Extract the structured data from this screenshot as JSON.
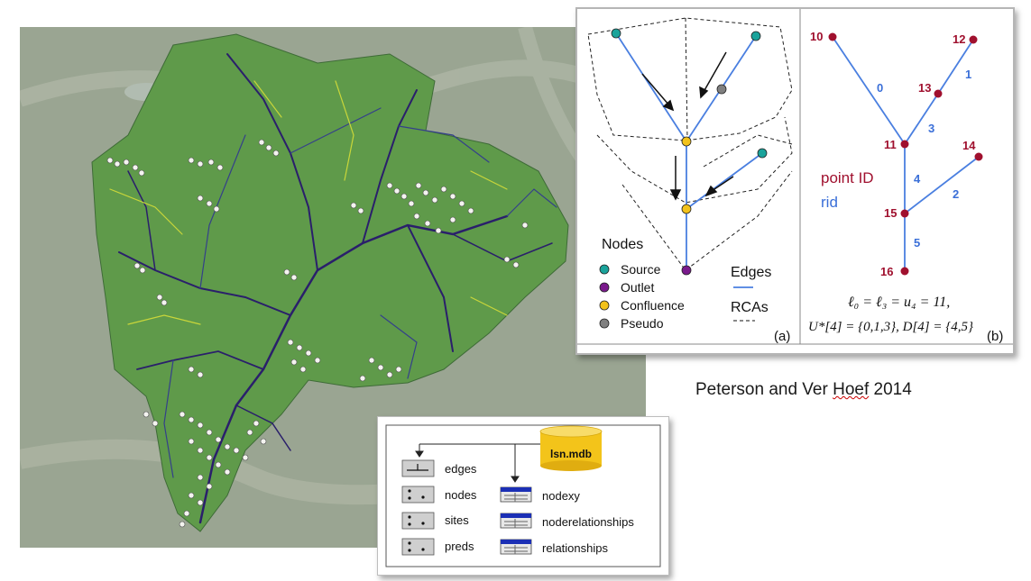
{
  "diagram_a": {
    "legend_nodes_title": "Nodes",
    "legend_nodes": [
      {
        "label": "Source",
        "color": "#1aa39b"
      },
      {
        "label": "Outlet",
        "color": "#7a1a8c"
      },
      {
        "label": "Confluence",
        "color": "#f2c21b"
      },
      {
        "label": "Pseudo",
        "color": "#808080"
      }
    ],
    "legend_edges_title": "Edges",
    "legend_rcas_title": "RCAs",
    "panel_label": "(a)"
  },
  "diagram_b": {
    "points": [
      {
        "id": "10"
      },
      {
        "id": "12"
      },
      {
        "id": "13"
      },
      {
        "id": "11"
      },
      {
        "id": "14"
      },
      {
        "id": "15"
      },
      {
        "id": "16"
      }
    ],
    "rids": [
      "0",
      "1",
      "3",
      "4",
      "2",
      "5"
    ],
    "legend_point_id": "point ID",
    "legend_rid": "rid",
    "formula_line1": "ℓ₀ = ℓ₃ = u₄ = 11,",
    "formula_line2": "U*[4] = {0,1,3},  D[4] = {4,5}",
    "panel_label": "(b)",
    "point_color": "#a0102e",
    "rid_color": "#3a6fd8"
  },
  "citation": {
    "authors": "Peterson and Ver",
    "flagged_word": "Hoef",
    "year": "2014"
  },
  "schema": {
    "database": "lsn.mdb",
    "feature_classes": [
      "edges",
      "nodes",
      "sites",
      "preds"
    ],
    "tables": [
      "nodexy",
      "noderelationships",
      "relationships"
    ]
  },
  "colors": {
    "edge_line": "#4a7fe0",
    "stream_green": "#2f8a5c",
    "stream_blue": "#3a2f8a",
    "stream_yellow": "#c9d63a",
    "db_gold": "#f3c41a",
    "table_header": "#1b2fb5"
  }
}
